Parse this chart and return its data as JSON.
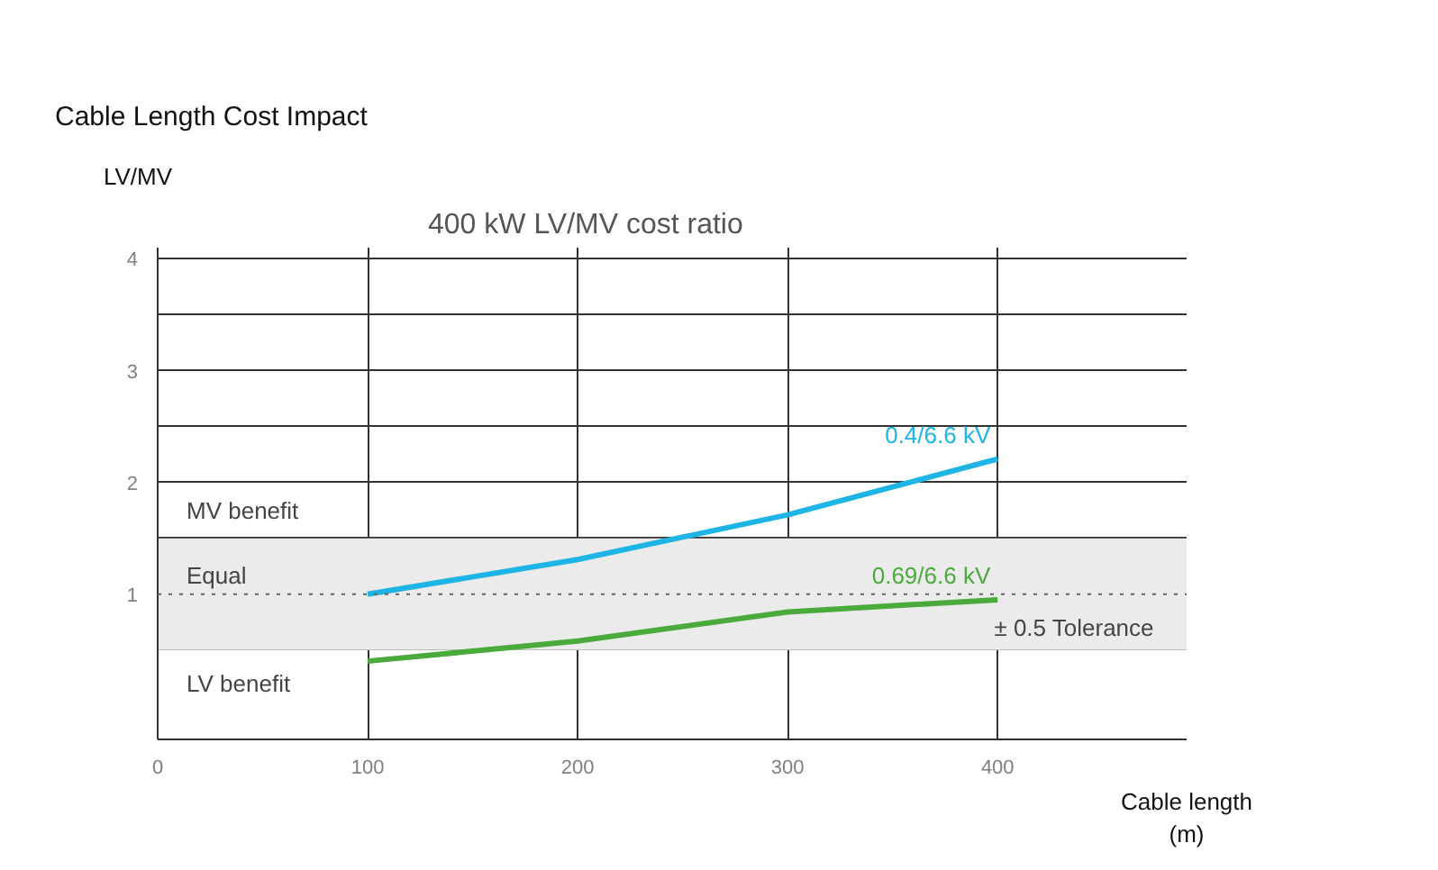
{
  "chart_data": {
    "type": "line",
    "title": "Cable Length Cost Impact",
    "subtitle": "400 kW LV/MV cost ratio",
    "xlabel": "Cable length\n(m)",
    "ylabel": "LV/MV",
    "x": [
      100,
      200,
      300,
      400
    ],
    "series": [
      {
        "name": "0.4/6.6 kV",
        "color": "#1eb4e6",
        "values": [
          1.0,
          1.31,
          1.71,
          2.21
        ]
      },
      {
        "name": "0.69/6.6 kV",
        "color": "#4aaa3c",
        "values": [
          0.4,
          0.58,
          0.84,
          0.95
        ]
      }
    ],
    "xlim": [
      0,
      490
    ],
    "xticks": [
      0,
      100,
      200,
      300,
      400
    ],
    "ylim": [
      -0.3,
      4.1
    ],
    "yticks": [
      {
        "value": 0.5,
        "label": null
      },
      1,
      {
        "value": 1.5,
        "label": null
      },
      2,
      {
        "value": 2.5,
        "label": null
      },
      3,
      {
        "value": 3.5,
        "label": null
      },
      4
    ],
    "ref_lines": [
      {
        "axis": "y",
        "value": 1,
        "label": "Equal",
        "line_style": "dotted",
        "color": "#666666"
      }
    ],
    "bands": [
      {
        "axis": "y",
        "from": 0.5,
        "to": 1.5,
        "label": "± 0.5 Tolerance",
        "color": "#ebebeb"
      }
    ],
    "annotations": [
      "MV benefit",
      "LV benefit"
    ],
    "grid": true,
    "marker": "none",
    "line_style": "solid"
  }
}
